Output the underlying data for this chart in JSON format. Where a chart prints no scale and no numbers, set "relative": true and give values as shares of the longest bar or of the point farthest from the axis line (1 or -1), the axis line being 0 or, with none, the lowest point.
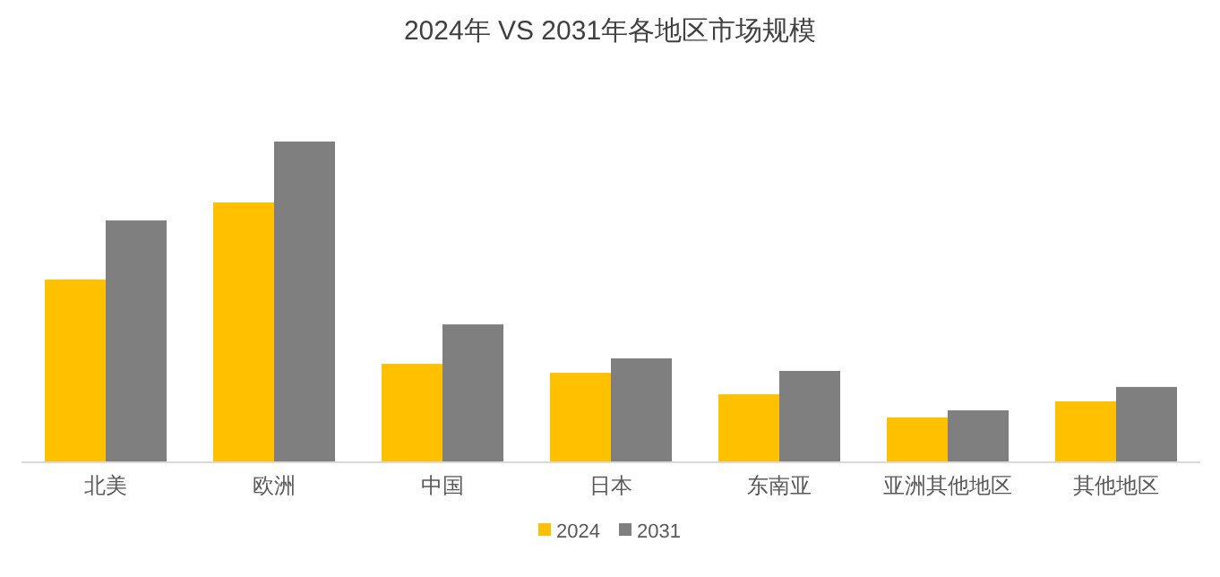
{
  "chart_data": {
    "type": "bar",
    "title": "2024年 VS 2031年各地区市场规模",
    "relative": true,
    "categories": [
      "北美",
      "欧洲",
      "中国",
      "日本",
      "东南亚",
      "亚洲其他地区",
      "其他地区"
    ],
    "series": [
      {
        "name": "2024",
        "color": "#ffc000",
        "values": [
          0.57,
          0.81,
          0.307,
          0.279,
          0.212,
          0.14,
          0.19
        ]
      },
      {
        "name": "2031",
        "color": "#7f7f7f",
        "values": [
          0.754,
          1,
          0.43,
          0.324,
          0.285,
          0.162,
          0.235
        ]
      }
    ],
    "legend": "bottom"
  }
}
